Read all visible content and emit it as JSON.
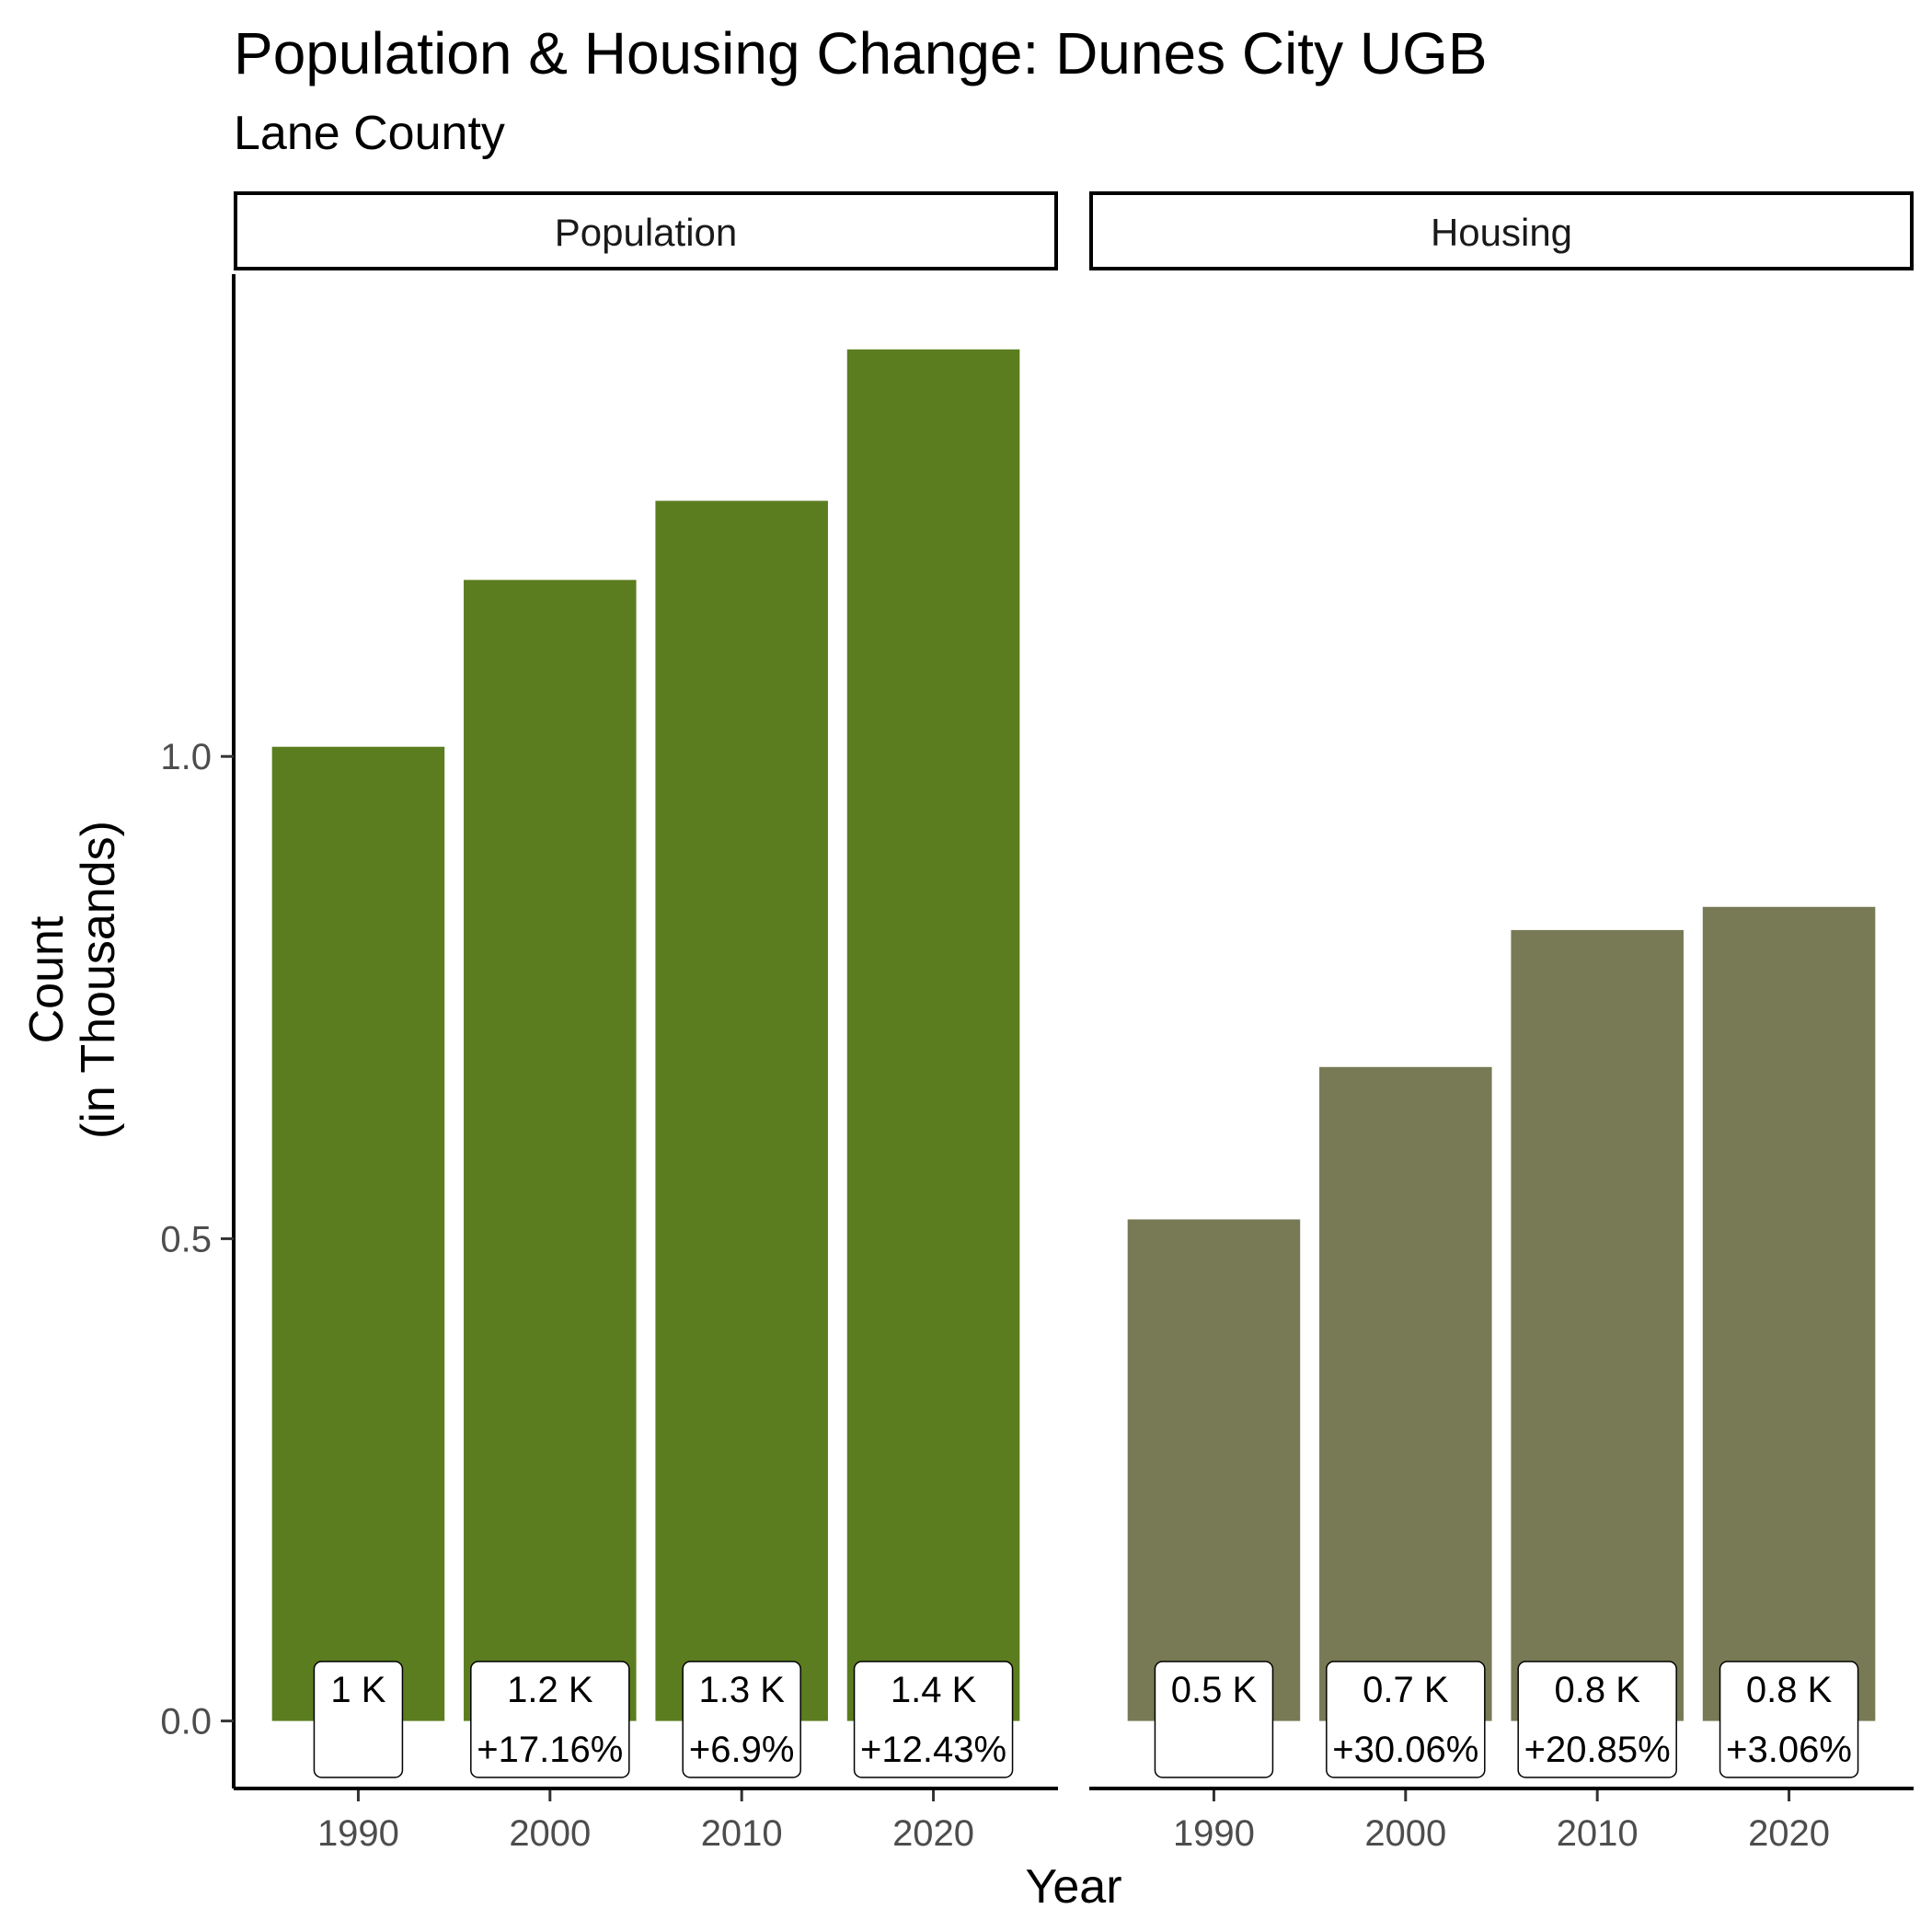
{
  "chart_data": {
    "type": "bar",
    "title": "Population & Housing Change: Dunes City UGB",
    "subtitle": "Lane County",
    "xlabel": "Year",
    "ylabel_line1": "Count",
    "ylabel_line2": "(in Thousands)",
    "ylim": [
      -0.07,
      1.5
    ],
    "yticks": [
      0.0,
      0.5,
      1.0
    ],
    "ytick_labels": [
      "0.0",
      "0.5",
      "1.0"
    ],
    "categories": [
      "1990",
      "2000",
      "2010",
      "2020"
    ],
    "grid": false,
    "legend": "none",
    "panels": [
      {
        "name": "Population",
        "color": "#5b7d1f",
        "values": [
          1.01,
          1.183,
          1.265,
          1.422
        ],
        "labels": [
          "1 K",
          "1.2 K",
          "1.3 K",
          "1.4 K"
        ],
        "changes": [
          "",
          "+17.16%",
          "+6.9%",
          "+12.43%"
        ]
      },
      {
        "name": "Housing",
        "color": "#787a55",
        "values": [
          0.52,
          0.678,
          0.82,
          0.844
        ],
        "labels": [
          "0.5 K",
          "0.7 K",
          "0.8 K",
          "0.8 K"
        ],
        "changes": [
          "",
          "+30.06%",
          "+20.85%",
          "+3.06%"
        ]
      }
    ]
  }
}
